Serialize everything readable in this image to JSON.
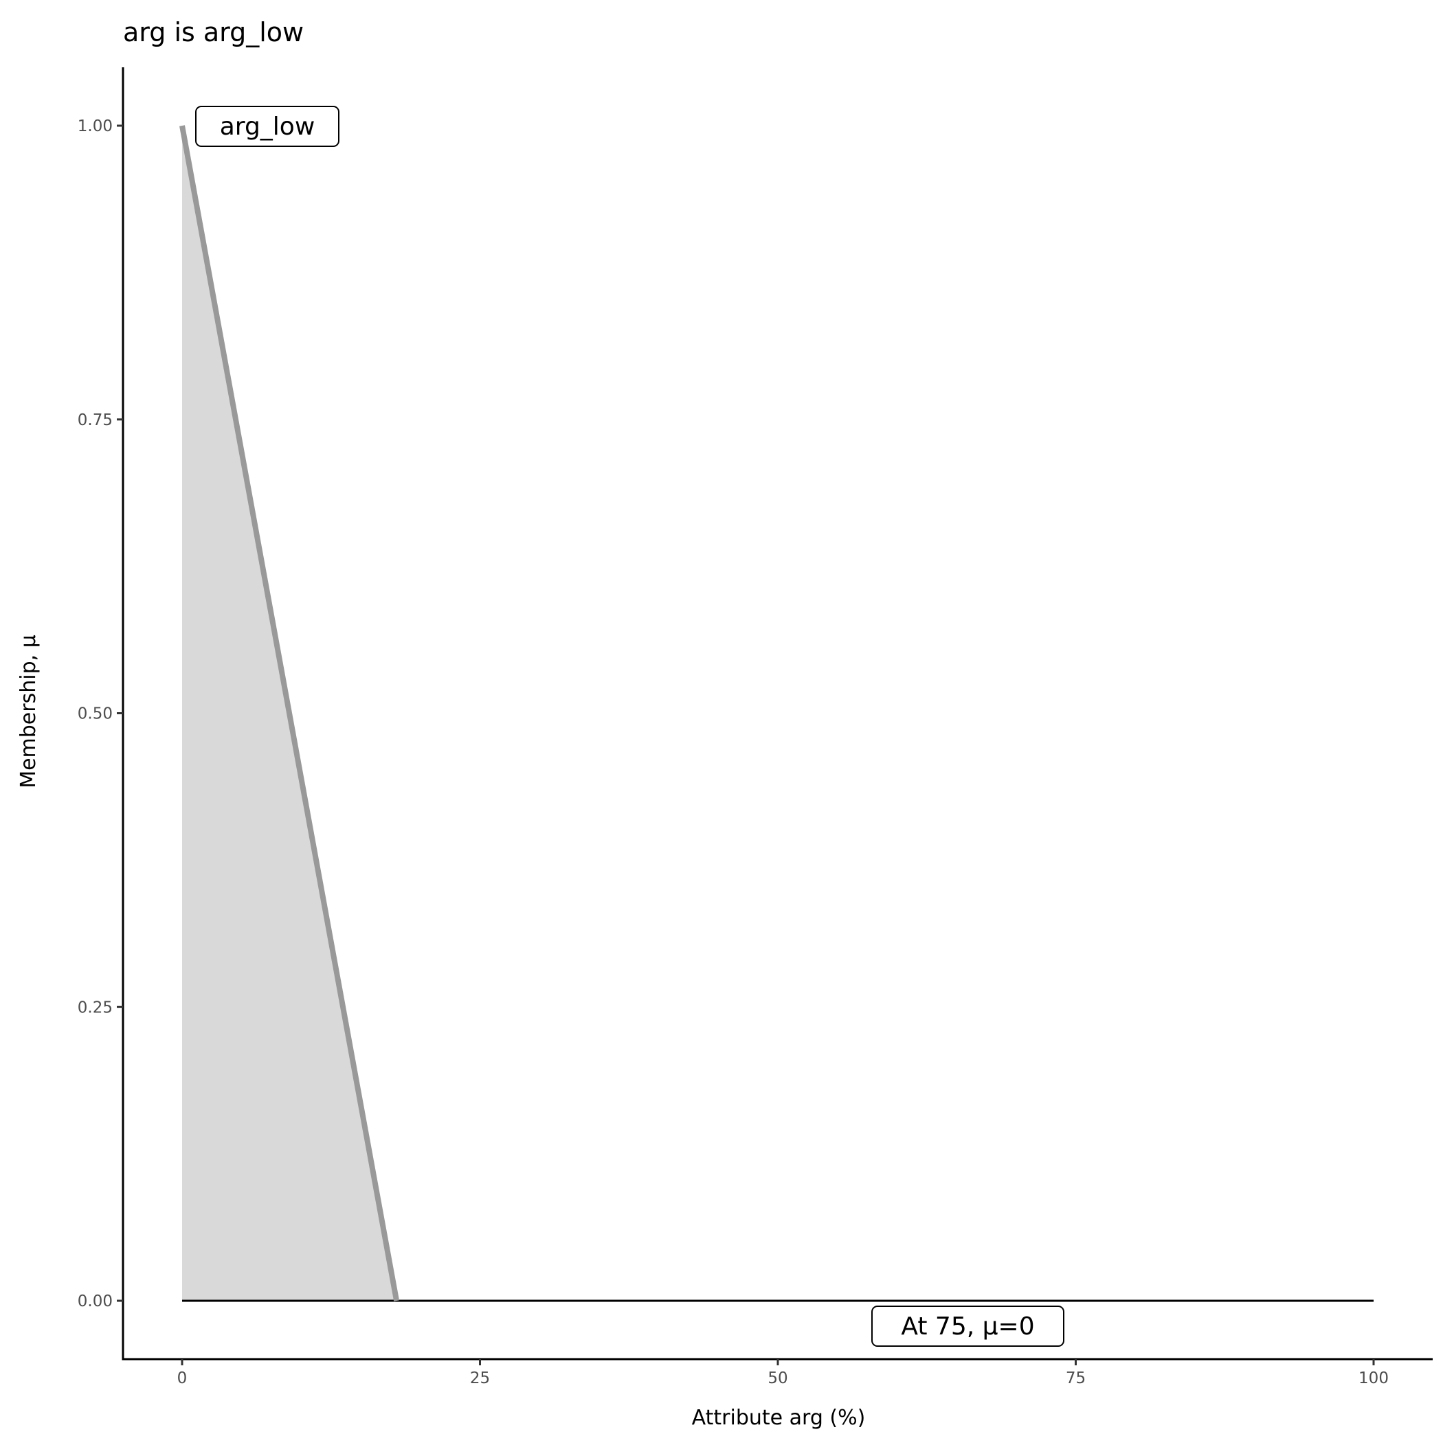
{
  "chart_data": {
    "type": "area",
    "title": "arg is arg_low",
    "xlabel": "Attribute arg (%)",
    "ylabel": "Membership, μ",
    "xlim": [
      -5,
      105
    ],
    "ylim": [
      -0.05,
      1.05
    ],
    "x_ticks": [
      0,
      25,
      50,
      75,
      100
    ],
    "x_tick_labels": [
      "0",
      "25",
      "50",
      "75",
      "100"
    ],
    "y_ticks": [
      0,
      0.25,
      0.5,
      0.75,
      1
    ],
    "y_tick_labels": [
      "0.00",
      "0.25",
      "0.50",
      "0.75",
      "1.00"
    ],
    "grid": false,
    "membership": {
      "x": [
        0,
        18,
        100
      ],
      "y": [
        1,
        0,
        0
      ]
    },
    "fill_color": "#d9d9d9",
    "line_color": "#999999",
    "baseline": {
      "x": [
        0,
        100
      ],
      "y": [
        0,
        0
      ]
    },
    "annotations": [
      {
        "text": "arg_low",
        "x": 0,
        "y": 1
      },
      {
        "text": "At 75, μ=0",
        "x": 66,
        "y": -0.025
      }
    ]
  }
}
